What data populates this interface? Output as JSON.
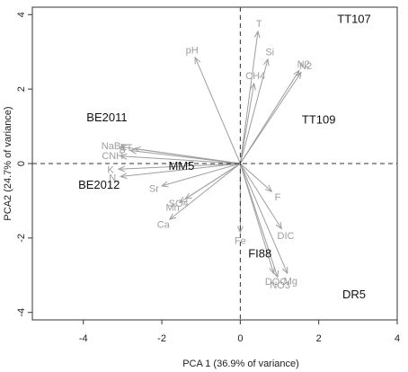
{
  "chart_data": {
    "type": "scatter",
    "title": "",
    "xlabel": "PCA 1 (36.9% of variance)",
    "ylabel": "PCA2 (24.7% of variance)",
    "xlim": [
      -5.3,
      4.0
    ],
    "ylim": [
      -4.2,
      4.2
    ],
    "x_ticks": [
      -4,
      -2,
      0,
      2,
      4
    ],
    "y_ticks": [
      -4,
      -2,
      0,
      2,
      4
    ],
    "grid": false,
    "reference_lines": "dashed lines at x = 0 and y = 0",
    "samples": [
      {
        "label": "TT107",
        "x": 2.9,
        "y": 3.9
      },
      {
        "label": "TT109",
        "x": 2.0,
        "y": 1.2
      },
      {
        "label": "BE2011",
        "x": -3.4,
        "y": 1.25
      },
      {
        "label": "BE2012",
        "x": -3.6,
        "y": -0.55
      },
      {
        "label": "MM5",
        "x": -1.5,
        "y": -0.05
      },
      {
        "label": "FI88",
        "x": 0.5,
        "y": -2.4
      },
      {
        "label": "DR5",
        "x": 2.9,
        "y": -3.5
      }
    ],
    "loadings": [
      {
        "name": "T",
        "x": 0.45,
        "y": 3.55
      },
      {
        "name": "Si",
        "x": 0.7,
        "y": 2.8
      },
      {
        "name": "N2",
        "x": 1.5,
        "y": 2.5
      },
      {
        "name": "N2",
        "x": 1.55,
        "y": 2.45
      },
      {
        "name": "CH4",
        "x": 0.35,
        "y": 2.15
      },
      {
        "name": "pH",
        "x": -1.15,
        "y": 2.85
      },
      {
        "name": "TT",
        "x": -2.7,
        "y": 0.4
      },
      {
        "name": "NaBr",
        "x": -3.05,
        "y": 0.45
      },
      {
        "name": "B",
        "x": -2.8,
        "y": 0.35
      },
      {
        "name": "CNH",
        "x": -3.05,
        "y": 0.2
      },
      {
        "name": "K",
        "x": -3.1,
        "y": -0.15
      },
      {
        "name": "N",
        "x": -3.05,
        "y": -0.35
      },
      {
        "name": "Sr",
        "x": -2.0,
        "y": -0.6
      },
      {
        "name": "SO4",
        "x": -1.4,
        "y": -0.95
      },
      {
        "name": "Mn",
        "x": -1.55,
        "y": -1.05
      },
      {
        "name": "Ca",
        "x": -1.8,
        "y": -1.5
      },
      {
        "name": "F",
        "x": 0.8,
        "y": -0.75
      },
      {
        "name": "DIC",
        "x": 1.05,
        "y": -1.75
      },
      {
        "name": "Fe",
        "x": 0.0,
        "y": -1.85
      },
      {
        "name": "DOC",
        "x": 0.85,
        "y": -2.95
      },
      {
        "name": "Mg",
        "x": 1.2,
        "y": -2.95
      },
      {
        "name": "NO3",
        "x": 0.95,
        "y": -3.05
      }
    ],
    "colors": {
      "samples": "#111111",
      "loadings": "#9e9e9e",
      "frame": "#333333"
    }
  }
}
